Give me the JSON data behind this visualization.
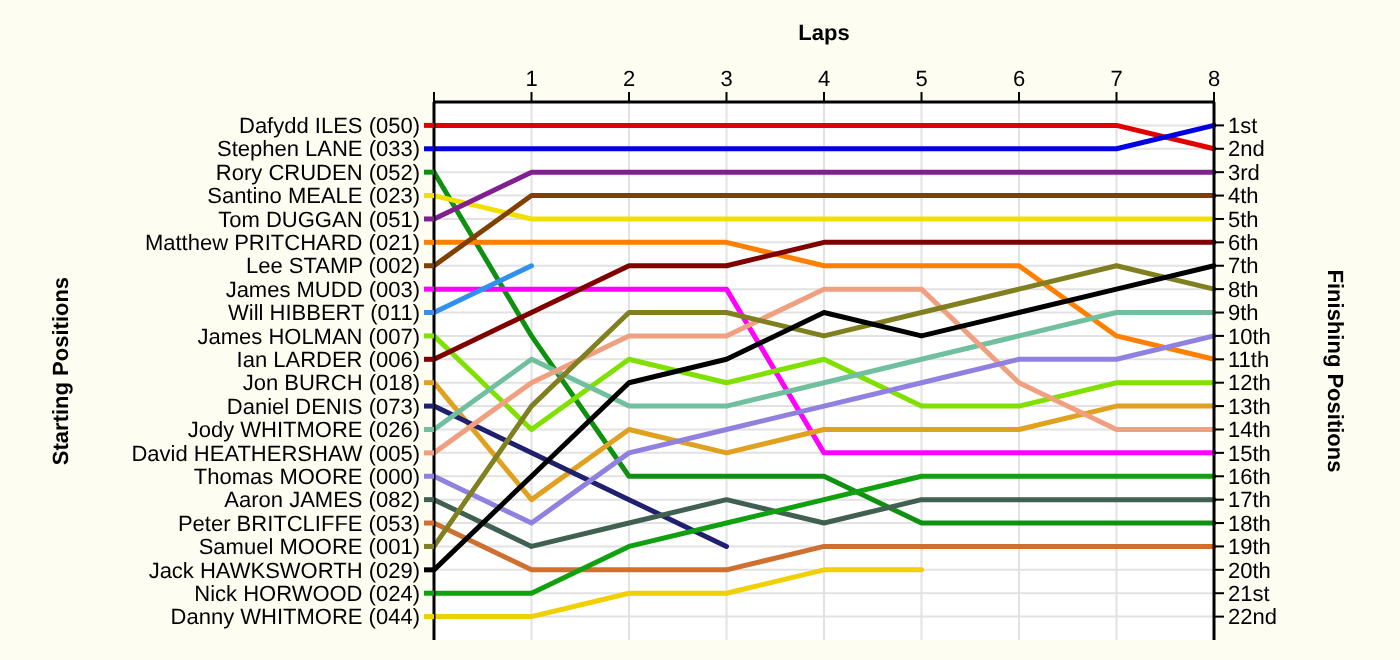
{
  "chart_data": {
    "type": "line",
    "xlabel": "Laps",
    "legend_title": "Starting Positions",
    "y2label": "Finishing Positions",
    "x": [
      0,
      1,
      2,
      3,
      4,
      5,
      6,
      7,
      8
    ],
    "xlim": [
      0,
      8
    ],
    "xticks": [
      {
        "value": 0,
        "label": null
      },
      1,
      2,
      3,
      4,
      5,
      6,
      7,
      8
    ],
    "y2lim": [
      23,
      0
    ],
    "y2ticks": [
      {
        "value": 1,
        "label": "1st"
      },
      {
        "value": 2,
        "label": "2nd"
      },
      {
        "value": 3,
        "label": "3rd"
      },
      {
        "value": 4,
        "label": "4th"
      },
      {
        "value": 5,
        "label": "5th"
      },
      {
        "value": 6,
        "label": "6th"
      },
      {
        "value": 7,
        "label": "7th"
      },
      {
        "value": 8,
        "label": "8th"
      },
      {
        "value": 9,
        "label": "9th"
      },
      {
        "value": 10,
        "label": "10th"
      },
      {
        "value": 11,
        "label": "11th"
      },
      {
        "value": 12,
        "label": "12th"
      },
      {
        "value": 13,
        "label": "13th"
      },
      {
        "value": 14,
        "label": "14th"
      },
      {
        "value": 15,
        "label": "15th"
      },
      {
        "value": 16,
        "label": "16th"
      },
      {
        "value": 17,
        "label": "17th"
      },
      {
        "value": 18,
        "label": "18th"
      },
      {
        "value": 19,
        "label": "19th"
      },
      {
        "value": 20,
        "label": "20th"
      },
      {
        "value": 21,
        "label": "21st"
      },
      {
        "value": 22,
        "label": "22nd"
      }
    ],
    "grid": true,
    "legend": "left",
    "series": [
      {
        "name": "Dafydd ILES (050)",
        "axis": "y2",
        "color": "#e00000",
        "values": [
          1,
          1,
          1,
          1,
          1,
          1,
          1,
          1,
          2
        ]
      },
      {
        "name": "Stephen LANE (033)",
        "axis": "y2",
        "color": "#0000e0",
        "values": [
          2,
          2,
          2,
          2,
          2,
          2,
          2,
          2,
          1
        ]
      },
      {
        "name": "Rory CRUDEN (052)",
        "axis": "y2",
        "color": "#109010",
        "values": [
          3,
          10,
          16,
          16,
          16,
          18,
          18,
          18,
          18
        ]
      },
      {
        "name": "Santino MEALE (023)",
        "axis": "y2",
        "color": "#f0e000",
        "values": [
          4,
          5,
          5,
          5,
          5,
          5,
          5,
          5,
          5
        ]
      },
      {
        "name": "Tom DUGGAN (051)",
        "axis": "y2",
        "color": "#802090",
        "values": [
          5,
          3,
          3,
          3,
          3,
          3,
          3,
          3,
          3
        ]
      },
      {
        "name": "Matthew PRITCHARD (021)",
        "axis": "y2",
        "color": "#ff8000",
        "values": [
          6,
          6,
          6,
          6,
          7,
          7,
          7,
          10,
          11
        ]
      },
      {
        "name": "Lee STAMP (002)",
        "axis": "y2",
        "color": "#804000",
        "values": [
          7,
          4,
          4,
          4,
          4,
          4,
          4,
          4,
          4
        ]
      },
      {
        "name": "James MUDD (003)",
        "axis": "y2",
        "color": "#ff00ff",
        "values": [
          8,
          8,
          8,
          8,
          15,
          15,
          15,
          15,
          15
        ]
      },
      {
        "name": "Will HIBBERT (011)",
        "axis": "y2",
        "color": "#3090f0",
        "values": [
          9,
          7,
          null,
          null,
          null,
          null,
          null,
          null,
          null
        ]
      },
      {
        "name": "James HOLMAN (007)",
        "axis": "y2",
        "color": "#80e000",
        "values": [
          10,
          14,
          11,
          12,
          11,
          13,
          13,
          12,
          12
        ]
      },
      {
        "name": "Ian LARDER (006)",
        "axis": "y2",
        "color": "#800000",
        "values": [
          11,
          9,
          7,
          7,
          6,
          6,
          6,
          6,
          6
        ]
      },
      {
        "name": "Jon BURCH (018)",
        "axis": "y2",
        "color": "#e0a020",
        "values": [
          12,
          17,
          14,
          15,
          14,
          14,
          14,
          13,
          13
        ]
      },
      {
        "name": "Daniel DENIS (073)",
        "axis": "y2",
        "color": "#202070",
        "values": [
          13,
          15,
          17,
          19,
          null,
          null,
          null,
          null,
          null
        ]
      },
      {
        "name": "Jody WHITMORE (026)",
        "axis": "y2",
        "color": "#70c0a0",
        "values": [
          14,
          11,
          13,
          13,
          12,
          11,
          10,
          9,
          9
        ]
      },
      {
        "name": "David HEATHERSHAW (005)",
        "axis": "y2",
        "color": "#f0a080",
        "values": [
          15,
          12,
          10,
          10,
          8,
          8,
          12,
          14,
          14
        ]
      },
      {
        "name": "Thomas MOORE (000)",
        "axis": "y2",
        "color": "#9080e0",
        "values": [
          16,
          18,
          15,
          14,
          13,
          12,
          11,
          11,
          10
        ]
      },
      {
        "name": "Aaron JAMES (082)",
        "axis": "y2",
        "color": "#406050",
        "values": [
          17,
          19,
          18,
          17,
          18,
          17,
          17,
          17,
          17
        ]
      },
      {
        "name": "Peter BRITCLIFFE (053)",
        "axis": "y2",
        "color": "#d07030",
        "values": [
          18,
          20,
          20,
          20,
          19,
          19,
          19,
          19,
          19
        ]
      },
      {
        "name": "Samuel MOORE (001)",
        "axis": "y2",
        "color": "#808020",
        "values": [
          19,
          13,
          9,
          9,
          10,
          9,
          8,
          7,
          8
        ]
      },
      {
        "name": "Jack HAWKSWORTH (029)",
        "axis": "y2",
        "color": "#000000",
        "values": [
          20,
          16,
          12,
          11,
          9,
          10,
          9,
          8,
          7
        ]
      },
      {
        "name": "Nick HORWOOD (024)",
        "axis": "y2",
        "color": "#10a010",
        "values": [
          21,
          21,
          19,
          18,
          17,
          16,
          16,
          16,
          16
        ]
      },
      {
        "name": "Danny WHITMORE (044)",
        "axis": "y2",
        "color": "#f0d000",
        "values": [
          22,
          22,
          21,
          21,
          20,
          20,
          null,
          null,
          null
        ]
      }
    ]
  }
}
